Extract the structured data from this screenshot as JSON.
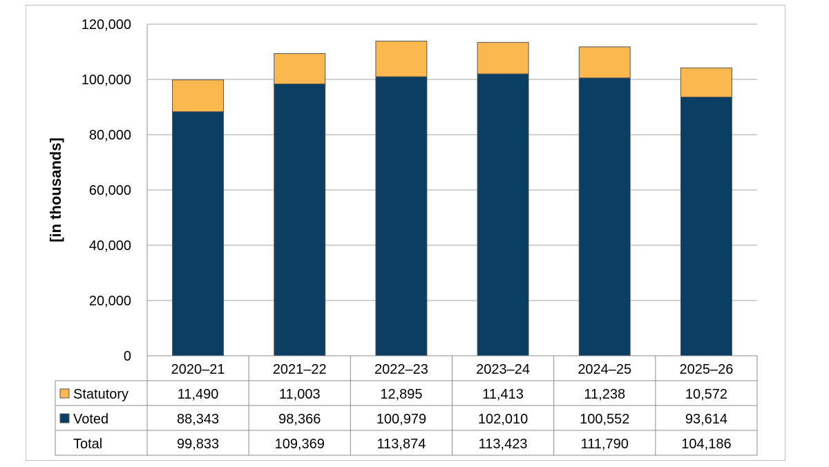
{
  "chart_data": {
    "type": "bar",
    "stacked": true,
    "ylabel": "[in thousands]",
    "ylim": [
      0,
      120000
    ],
    "yticks": [
      0,
      20000,
      40000,
      60000,
      80000,
      100000,
      120000
    ],
    "ytick_labels": [
      "0",
      "20,000",
      "40,000",
      "60,000",
      "80,000",
      "100,000",
      "120,000"
    ],
    "grid": true,
    "legend": "in data table",
    "categories": [
      "2020–21",
      "2021–22",
      "2022–23",
      "2023–24",
      "2024–25",
      "2025–26"
    ],
    "series": [
      {
        "name": "Voted",
        "color": "#0b3e63",
        "values": [
          88343,
          98366,
          100979,
          102010,
          100552,
          93614
        ]
      },
      {
        "name": "Statutory",
        "color": "#fbb84f",
        "values": [
          11490,
          11003,
          12895,
          11413,
          11238,
          10572
        ]
      }
    ],
    "data_table": {
      "rows": [
        {
          "label": "Statutory",
          "color": "#fbb84f",
          "cells": [
            "11,490",
            "11,003",
            "12,895",
            "11,413",
            "11,238",
            "10,572"
          ]
        },
        {
          "label": "Voted",
          "color": "#0b3e63",
          "cells": [
            "88,343",
            "98,366",
            "100,979",
            "102,010",
            "100,552",
            "93,614"
          ]
        },
        {
          "label": "Total",
          "color": null,
          "cells": [
            "99,833",
            "109,369",
            "113,874",
            "113,423",
            "111,790",
            "104,186"
          ]
        }
      ]
    }
  }
}
